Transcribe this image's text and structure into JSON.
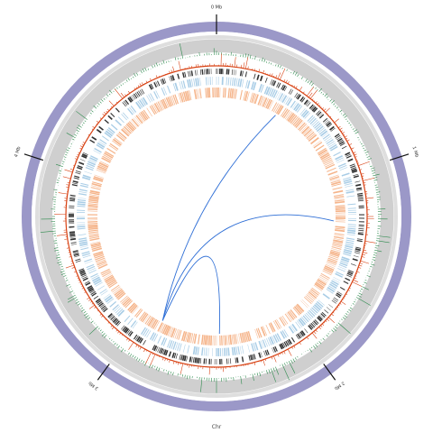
{
  "figure": {
    "chromosome_label": "Chr",
    "major_ticks": [
      {
        "label": "0 Mb",
        "mb": 0
      },
      {
        "label": "1 Mb",
        "mb": 1
      },
      {
        "label": "2 Mb",
        "mb": 2
      },
      {
        "label": "3 Mb",
        "mb": 3
      },
      {
        "label": "4 Mb",
        "mb": 4
      }
    ],
    "genome_length_mb": 5.0
  },
  "tracks": [
    {
      "name": "chromosome-ideogram",
      "color": "#9b98c8"
    },
    {
      "name": "outer-gray-band",
      "color": "#dedede"
    },
    {
      "name": "inner-gray-band",
      "color": "#cfcfcf"
    },
    {
      "name": "green-histogram",
      "color": "#2e8b4e"
    },
    {
      "name": "red-histogram",
      "color": "#d84315"
    },
    {
      "name": "dark-gene-ticks",
      "color": "#333333"
    },
    {
      "name": "blue-gene-blocks",
      "color": "#a9cde6"
    },
    {
      "name": "orange-gene-blocks",
      "color": "#f5b48a"
    }
  ],
  "links": {
    "color": "#2f6fd6",
    "arcs": [
      {
        "from_mb": 2.88,
        "to_mb": 0.42
      },
      {
        "from_mb": 2.88,
        "to_mb": 1.28
      },
      {
        "from_mb": 2.88,
        "to_mb": 2.48
      }
    ]
  }
}
